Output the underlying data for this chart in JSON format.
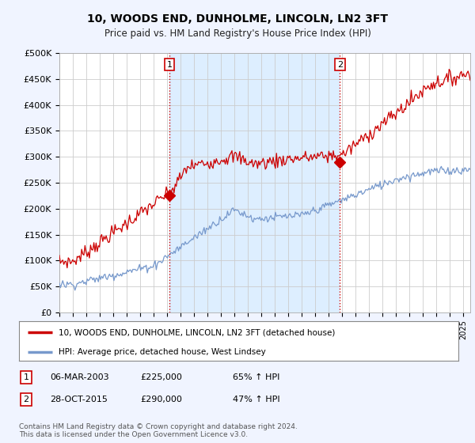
{
  "title": "10, WOODS END, DUNHOLME, LINCOLN, LN2 3FT",
  "subtitle": "Price paid vs. HM Land Registry's House Price Index (HPI)",
  "ylabel_ticks": [
    "£0",
    "£50K",
    "£100K",
    "£150K",
    "£200K",
    "£250K",
    "£300K",
    "£350K",
    "£400K",
    "£450K",
    "£500K"
  ],
  "ytick_values": [
    0,
    50000,
    100000,
    150000,
    200000,
    250000,
    300000,
    350000,
    400000,
    450000,
    500000
  ],
  "xlim_start": 1995.0,
  "xlim_end": 2025.5,
  "ylim": [
    0,
    500000
  ],
  "red_line_color": "#cc0000",
  "blue_line_color": "#7799cc",
  "sale1_x": 2003.18,
  "sale1_y": 225000,
  "sale2_x": 2015.83,
  "sale2_y": 290000,
  "vline_color": "#cc0000",
  "vline_style": ":",
  "shade_color": "#ddeeff",
  "legend_label_red": "10, WOODS END, DUNHOLME, LINCOLN, LN2 3FT (detached house)",
  "legend_label_blue": "HPI: Average price, detached house, West Lindsey",
  "table_row1": [
    "1",
    "06-MAR-2003",
    "£225,000",
    "65% ↑ HPI"
  ],
  "table_row2": [
    "2",
    "28-OCT-2015",
    "£290,000",
    "47% ↑ HPI"
  ],
  "footer": "Contains HM Land Registry data © Crown copyright and database right 2024.\nThis data is licensed under the Open Government Licence v3.0.",
  "bg_color": "#f0f4ff",
  "plot_bg_color": "#ffffff",
  "grid_color": "#cccccc"
}
